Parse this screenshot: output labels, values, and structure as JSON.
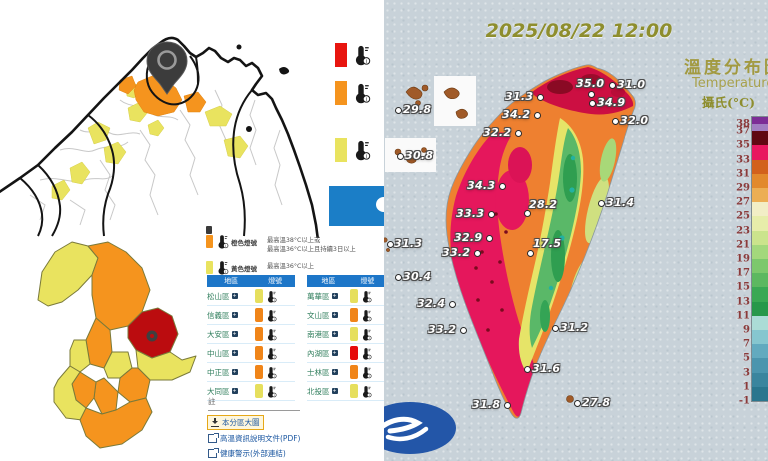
{
  "colors": {
    "levels": {
      "yellow": "#e6df5d",
      "orange": "#f08519",
      "red": "#e60a0a"
    },
    "table_header": "#1d76c8",
    "button_blue": "#1b7ec7"
  },
  "left_panel": {
    "side_legend": {
      "items": [
        {
          "name": "red",
          "color": "#e8150f"
        },
        {
          "name": "orange",
          "color": "#f5941e"
        },
        {
          "name": "yellow",
          "color": "#e9e35f"
        }
      ]
    },
    "level_legend": [
      {
        "level": "orange",
        "color": "#f5941e",
        "label": "橙色燈號",
        "lines": [
          "最高溫38°C以上或",
          "最高溫36°C以上且持續3日以上"
        ]
      },
      {
        "level": "yellow",
        "color": "#e9e35f",
        "label": "黃色燈號",
        "lines": [
          "最高溫36°C以上"
        ]
      }
    ],
    "tables": [
      {
        "headers": [
          "地區",
          "燈號"
        ],
        "rows": [
          {
            "district": "松山區",
            "level": "yellow"
          },
          {
            "district": "信義區",
            "level": "orange"
          },
          {
            "district": "大安區",
            "level": "orange"
          },
          {
            "district": "中山區",
            "level": "orange"
          },
          {
            "district": "中正區",
            "level": "orange"
          },
          {
            "district": "大同區",
            "level": "yellow"
          }
        ]
      },
      {
        "headers": [
          "地區",
          "燈號"
        ],
        "rows": [
          {
            "district": "萬華區",
            "level": "yellow"
          },
          {
            "district": "文山區",
            "level": "orange"
          },
          {
            "district": "南港區",
            "level": "yellow"
          },
          {
            "district": "內湖區",
            "level": "red"
          },
          {
            "district": "士林區",
            "level": "orange"
          },
          {
            "district": "北投區",
            "level": "yellow"
          }
        ]
      }
    ],
    "note_label": "註",
    "links": [
      {
        "text": "本分區大圖",
        "icon": "download-icon",
        "highlighted": true
      },
      {
        "text": "高溫資訊說明文件(PDF)",
        "icon": "external-link-icon",
        "highlighted": false
      },
      {
        "text": "健康警示(外部連結)",
        "icon": "external-link-icon",
        "highlighted": false
      }
    ]
  },
  "right_panel": {
    "datetime": "2025/08/22 12:00",
    "title_zh": "溫度分布圖",
    "title_en": "Temperature",
    "unit_label": "攝氏(°C)",
    "colorbar": {
      "ticks": [
        38,
        37,
        35,
        33,
        31,
        29,
        27,
        25,
        23,
        21,
        19,
        17,
        15,
        13,
        11,
        9,
        7,
        5,
        3,
        1,
        -1
      ],
      "segments": [
        {
          "from": 39,
          "to": 38,
          "color": "#7c2e96"
        },
        {
          "from": 38,
          "to": 37,
          "color": "#a17ec2"
        },
        {
          "from": 37,
          "to": 35,
          "color": "#600812"
        },
        {
          "from": 35,
          "to": 33,
          "color": "#e8175f"
        },
        {
          "from": 33,
          "to": 31,
          "color": "#d2611c"
        },
        {
          "from": 31,
          "to": 29,
          "color": "#e2892c"
        },
        {
          "from": 29,
          "to": 27,
          "color": "#ecae54"
        },
        {
          "from": 27,
          "to": 25,
          "color": "#f2eec6"
        },
        {
          "from": 25,
          "to": 23,
          "color": "#e7edaa"
        },
        {
          "from": 23,
          "to": 21,
          "color": "#cbe48c"
        },
        {
          "from": 21,
          "to": 19,
          "color": "#a3d87c"
        },
        {
          "from": 19,
          "to": 17,
          "color": "#7cc86c"
        },
        {
          "from": 17,
          "to": 15,
          "color": "#5cb860"
        },
        {
          "from": 15,
          "to": 13,
          "color": "#3aa854"
        },
        {
          "from": 13,
          "to": 11,
          "color": "#27984a"
        },
        {
          "from": 11,
          "to": 9,
          "color": "#abdcd6"
        },
        {
          "from": 9,
          "to": 7,
          "color": "#86c6cf"
        },
        {
          "from": 7,
          "to": 5,
          "color": "#62aabf"
        },
        {
          "from": 5,
          "to": 3,
          "color": "#4b95ae"
        },
        {
          "from": 3,
          "to": 1,
          "color": "#3a859e"
        },
        {
          "from": 1,
          "to": -1,
          "color": "#2a768e"
        }
      ]
    },
    "stations": [
      {
        "value": "29.8",
        "dot": [
          14,
          110
        ],
        "label": [
          19,
          103
        ]
      },
      {
        "value": "30.8",
        "dot": [
          16,
          156
        ],
        "label": [
          21,
          149
        ]
      },
      {
        "value": "31.3",
        "dot": [
          156,
          97
        ],
        "label": [
          121,
          90
        ]
      },
      {
        "value": "34.2",
        "dot": [
          153,
          115
        ],
        "label": [
          118,
          108
        ]
      },
      {
        "value": "32.2",
        "dot": [
          134,
          133
        ],
        "label": [
          99,
          126
        ]
      },
      {
        "value": "35.0",
        "dot": [
          207,
          94
        ],
        "label": [
          192,
          77
        ]
      },
      {
        "value": "31.0",
        "dot": [
          228,
          85
        ],
        "label": [
          233,
          78
        ]
      },
      {
        "value": "34.9",
        "dot": [
          208,
          103
        ],
        "label": [
          213,
          96
        ]
      },
      {
        "value": "32.0",
        "dot": [
          231,
          121
        ],
        "label": [
          236,
          114
        ]
      },
      {
        "value": "34.3",
        "dot": [
          118,
          186
        ],
        "label": [
          83,
          179
        ]
      },
      {
        "value": "28.2",
        "dot": [
          143,
          213
        ],
        "label": [
          145,
          198
        ]
      },
      {
        "value": "31.4",
        "dot": [
          217,
          203
        ],
        "label": [
          222,
          196
        ]
      },
      {
        "value": "33.3",
        "dot": [
          107,
          214
        ],
        "label": [
          72,
          207
        ]
      },
      {
        "value": "32.9",
        "dot": [
          105,
          238
        ],
        "label": [
          70,
          231
        ]
      },
      {
        "value": "17.5",
        "dot": [
          146,
          253
        ],
        "label": [
          149,
          237
        ]
      },
      {
        "value": "31.3",
        "dot": [
          6,
          244
        ],
        "label": [
          10,
          237
        ]
      },
      {
        "value": "33.2",
        "dot": [
          93,
          253
        ],
        "label": [
          58,
          246
        ]
      },
      {
        "value": "30.4",
        "dot": [
          14,
          277
        ],
        "label": [
          19,
          270
        ]
      },
      {
        "value": "32.4",
        "dot": [
          68,
          304
        ],
        "label": [
          33,
          297
        ]
      },
      {
        "value": "33.2",
        "dot": [
          79,
          330
        ],
        "label": [
          44,
          323
        ]
      },
      {
        "value": "31.2",
        "dot": [
          171,
          328
        ],
        "label": [
          176,
          321
        ]
      },
      {
        "value": "31.6",
        "dot": [
          143,
          369
        ],
        "label": [
          148,
          362
        ]
      },
      {
        "value": "31.8",
        "dot": [
          123,
          405
        ],
        "label": [
          88,
          398
        ]
      },
      {
        "value": "27.8",
        "dot": [
          193,
          403
        ],
        "label": [
          198,
          396
        ]
      }
    ]
  }
}
